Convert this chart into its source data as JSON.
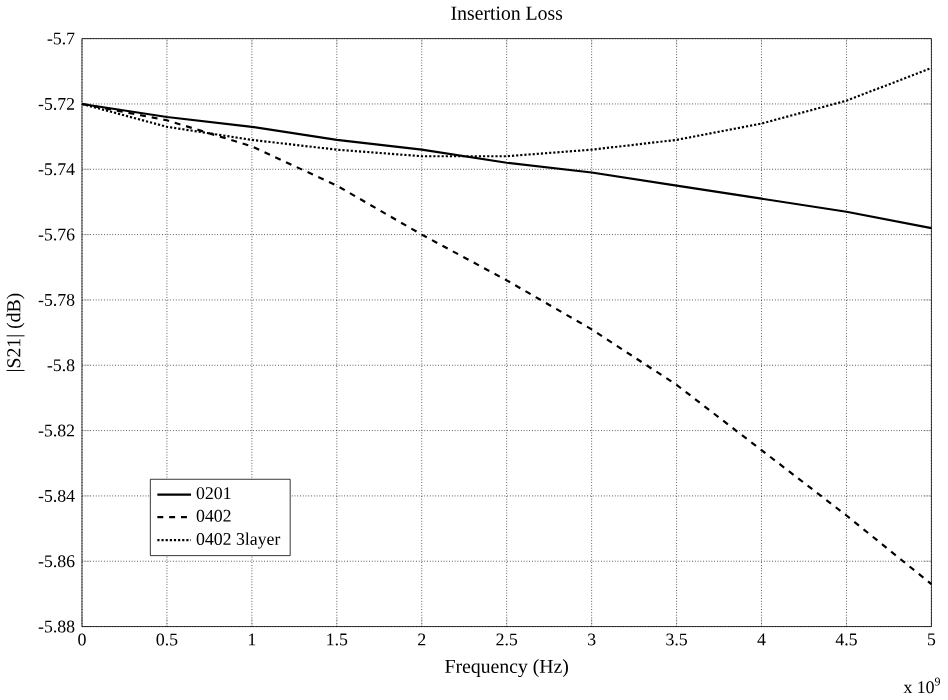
{
  "chart_data": {
    "type": "line",
    "title": "Insertion Loss",
    "xlabel": "Frequency (Hz)",
    "ylabel": "|S21| (dB)",
    "annotations": [
      "x 10$^{9}$"
    ],
    "x": [
      0,
      0.5,
      1,
      1.5,
      2,
      2.5,
      3,
      3.5,
      4,
      4.5,
      5
    ],
    "series": [
      {
        "name": "0201",
        "color": "#000000",
        "line_style": "solid",
        "values": [
          -5.72,
          -5.724,
          -5.727,
          -5.731,
          -5.734,
          -5.738,
          -5.741,
          -5.745,
          -5.749,
          -5.753,
          -5.758
        ]
      },
      {
        "name": "0402",
        "color": "#000000",
        "line_style": "dashed",
        "values": [
          -5.72,
          -5.725,
          -5.733,
          -5.745,
          -5.76,
          -5.774,
          -5.789,
          -5.806,
          -5.826,
          -5.846,
          -5.867
        ]
      },
      {
        "name": "0402 3layer",
        "color": "#000000",
        "line_style": "dotted",
        "values": [
          -5.72,
          -5.727,
          -5.731,
          -5.734,
          -5.736,
          -5.736,
          -5.734,
          -5.731,
          -5.726,
          -5.719,
          -5.709
        ]
      }
    ],
    "xlim": [
      0,
      5
    ],
    "xticks": [
      0,
      0.5,
      1,
      1.5,
      2,
      2.5,
      3,
      3.5,
      4,
      4.5,
      5
    ],
    "ylim": [
      -5.88,
      -5.7
    ],
    "yticks": [
      -5.88,
      -5.86,
      -5.84,
      -5.82,
      -5.8,
      -5.78,
      -5.76,
      -5.74,
      -5.72,
      -5.7
    ],
    "grid": true,
    "legend": "bottom left",
    "marker": "none"
  }
}
